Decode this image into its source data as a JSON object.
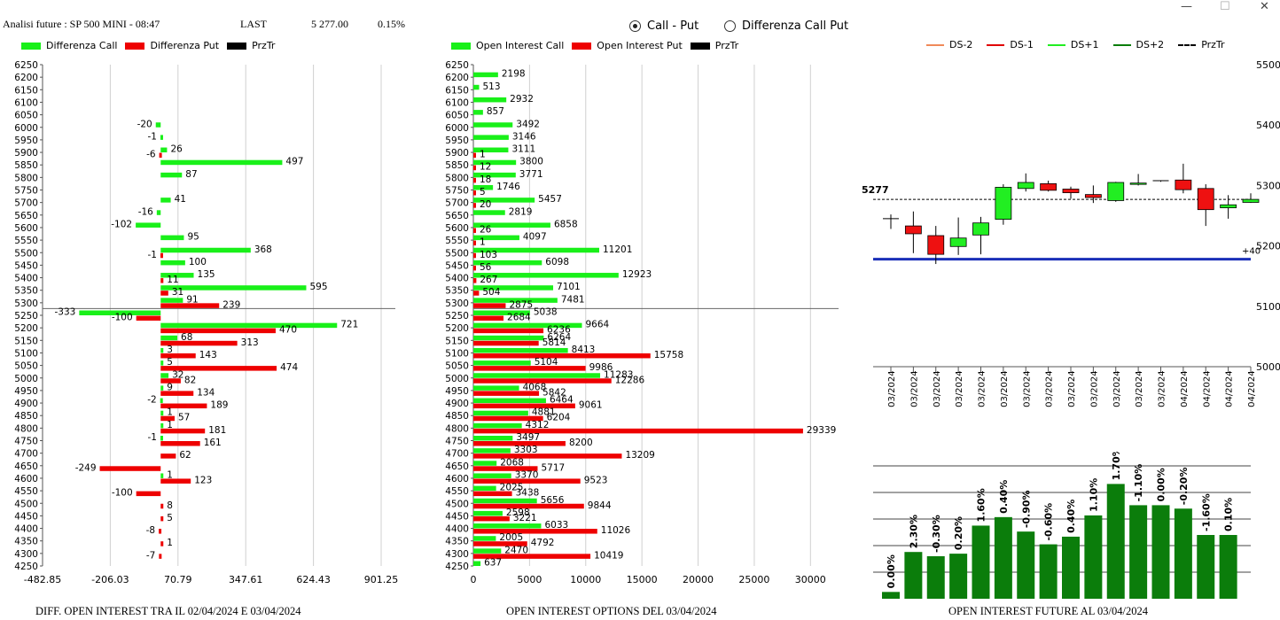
{
  "header": {
    "title": "Analisi future : SP 500 MINI - 08:47",
    "last_label": "LAST",
    "last_value": "5 277.00",
    "pct": "0.15%"
  },
  "window_controls": {
    "minimize": "—",
    "maximize": "☐",
    "close": "✕"
  },
  "radio": {
    "options": [
      {
        "label": "Call - Put",
        "selected": true
      },
      {
        "label": "Differenza Call Put",
        "selected": false
      }
    ]
  },
  "colors": {
    "call": "#19f019",
    "put": "#ee0000",
    "prztr": "#000000",
    "blue": "#1a2fb8",
    "future_bar": "#0b7d0b",
    "green_candle": "#22ee22",
    "red_candle": "#ee1111"
  },
  "panel1": {
    "legend": [
      "Differenza Call",
      "Differenza Put",
      "PrzTr"
    ],
    "footer": "DIFF. OPEN INTEREST TRA IL 02/04/2024 E 03/04/2024"
  },
  "panel2": {
    "legend": [
      "Open Interest Call",
      "Open Interest Put",
      "PrzTr"
    ],
    "footer": "OPEN INTEREST OPTIONS DEL 03/04/2024"
  },
  "panel3": {
    "legend": [
      "DS-2",
      "DS-1",
      "DS+1",
      "DS+2",
      "PrzTr"
    ],
    "footer": "OPEN INTEREST FUTURE AL 03/04/2024"
  },
  "chart_data": [
    {
      "type": "bar",
      "orientation": "horizontal",
      "strikes": [
        6250,
        6200,
        6150,
        6100,
        6050,
        6000,
        5950,
        5900,
        5850,
        5800,
        5750,
        5700,
        5650,
        5600,
        5550,
        5500,
        5450,
        5400,
        5350,
        5300,
        5250,
        5200,
        5150,
        5100,
        5050,
        5000,
        4950,
        4900,
        4850,
        4800,
        4750,
        4700,
        4650,
        4600,
        4550,
        4500,
        4450,
        4400,
        4350,
        4300,
        4250
      ],
      "series": [
        {
          "name": "Differenza Call",
          "values": [
            null,
            null,
            null,
            null,
            null,
            -20,
            -1,
            26,
            497,
            87,
            null,
            41,
            -16,
            -102,
            95,
            368,
            100,
            135,
            595,
            91,
            -333,
            721,
            68,
            3,
            5,
            32,
            9,
            -2,
            1,
            1,
            -1,
            null,
            null,
            1,
            null,
            null,
            null,
            null,
            null,
            null,
            null
          ]
        },
        {
          "name": "Differenza Put",
          "values": [
            null,
            null,
            null,
            null,
            null,
            null,
            null,
            -6,
            null,
            null,
            null,
            null,
            null,
            null,
            null,
            -1,
            null,
            11,
            31,
            239,
            -100,
            470,
            313,
            143,
            474,
            82,
            134,
            189,
            57,
            181,
            161,
            62,
            -249,
            123,
            -100,
            8,
            5,
            -8,
            1,
            -7,
            null
          ]
        }
      ],
      "x_ticks": [
        "-482.85",
        "-206.03",
        "70.79",
        "347.61",
        "624.43",
        "901.25"
      ],
      "xlim": [
        -482.85,
        901.25
      ],
      "prztr": 5277
    },
    {
      "type": "bar",
      "orientation": "horizontal",
      "strikes": [
        6250,
        6200,
        6150,
        6100,
        6050,
        6000,
        5950,
        5900,
        5850,
        5800,
        5750,
        5700,
        5650,
        5600,
        5550,
        5500,
        5450,
        5400,
        5350,
        5300,
        5250,
        5200,
        5150,
        5100,
        5050,
        5000,
        4950,
        4900,
        4850,
        4800,
        4750,
        4700,
        4650,
        4600,
        4550,
        4500,
        4450,
        4400,
        4350,
        4300,
        4250
      ],
      "series": [
        {
          "name": "Open Interest Call",
          "values": [
            null,
            2198,
            513,
            2932,
            857,
            3492,
            3146,
            3111,
            3800,
            3771,
            1746,
            5457,
            2819,
            6858,
            4097,
            11201,
            6098,
            12923,
            7101,
            7481,
            5038,
            9664,
            6264,
            8413,
            5104,
            11283,
            4068,
            6464,
            4881,
            4312,
            3497,
            3303,
            2068,
            3370,
            2025,
            5656,
            2598,
            6033,
            2005,
            2470,
            637
          ]
        },
        {
          "name": "Open Interest Put",
          "values": [
            null,
            null,
            null,
            null,
            null,
            null,
            null,
            1,
            12,
            18,
            5,
            20,
            null,
            26,
            1,
            103,
            56,
            267,
            504,
            2875,
            2684,
            6236,
            5814,
            15758,
            9986,
            12286,
            5842,
            9061,
            6204,
            29339,
            8200,
            13209,
            5717,
            9523,
            3438,
            9844,
            3221,
            11026,
            4792,
            10419,
            null
          ]
        }
      ],
      "x_ticks": [
        "0",
        "5000",
        "10000",
        "15000",
        "20000",
        "25000",
        "30000"
      ],
      "xlim": [
        0,
        32500
      ],
      "prztr": 5277
    },
    {
      "type": "candlestick",
      "dates": [
        "13/03/2024",
        "14/03/2024",
        "15/03/2024",
        "18/03/2024",
        "19/03/2024",
        "20/03/2024",
        "21/03/2024",
        "22/03/2024",
        "25/03/2024",
        "26/03/2024",
        "27/03/2024",
        "28/03/2024",
        "29/03/2024",
        "01/04/2024",
        "02/04/2024",
        "03/04/2024",
        "04/04/2024"
      ],
      "open": [
        5245,
        5233,
        5217,
        5199,
        5218,
        5244,
        5295,
        5303,
        5294,
        5285,
        5275,
        5302,
        5308,
        5309,
        5295,
        5263,
        5272
      ],
      "close": [
        5245,
        5220,
        5186,
        5213,
        5238,
        5297,
        5305,
        5292,
        5288,
        5280,
        5305,
        5304,
        5308,
        5293,
        5260,
        5268,
        5277
      ],
      "high": [
        5252,
        5257,
        5233,
        5247,
        5248,
        5302,
        5320,
        5308,
        5298,
        5300,
        5306,
        5319,
        5308,
        5336,
        5302,
        5284,
        5287
      ],
      "low": [
        5228,
        5188,
        5170,
        5185,
        5186,
        5235,
        5290,
        5290,
        5278,
        5271,
        5273,
        5300,
        5306,
        5287,
        5233,
        5245,
        5271
      ],
      "y_ticks": [
        "5500",
        "5400",
        "5300",
        "5200",
        "5100",
        "5000"
      ],
      "ylim": [
        5000,
        5500
      ],
      "prztr_label": "5277",
      "prztr": 5277,
      "support_line": 5178,
      "support_label": "+40"
    },
    {
      "type": "bar",
      "categories": [
        "13/03/2024",
        "14/03/2024",
        "15/03/2024",
        "18/03/2024",
        "19/03/2024",
        "20/03/2024",
        "21/03/2024",
        "22/03/2024",
        "25/03/2024",
        "26/03/2024",
        "27/03/2024",
        "28/03/2024",
        "29/03/2024",
        "01/04/2024",
        "02/04/2024",
        "03/04/2024",
        "04/04/2024"
      ],
      "values": [
        0.8,
        5.5,
        5.0,
        5.3,
        8.6,
        9.6,
        7.9,
        6.4,
        7.3,
        9.8,
        13.5,
        11.0,
        11.0,
        10.6,
        7.5,
        7.5,
        null
      ],
      "labels": [
        "0.00%",
        "2.30%",
        "-0.30%",
        "0.20%",
        "1.60%",
        "0.40%",
        "-0.90%",
        "-0.60%",
        "0.40%",
        "1.10%",
        "1.70%",
        "-1.10%",
        "0.00%",
        "-0.20%",
        "-1.60%",
        "0.10%",
        ""
      ],
      "grid": true
    }
  ]
}
